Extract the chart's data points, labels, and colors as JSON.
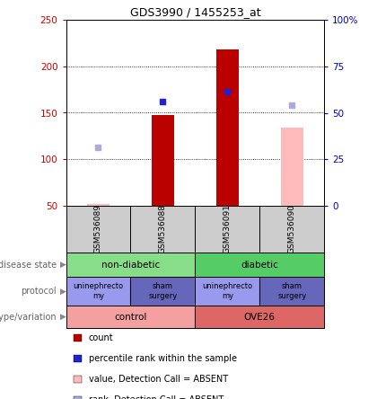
{
  "title": "GDS3990 / 1455253_at",
  "samples": [
    "GSM536089",
    "GSM536088",
    "GSM536091",
    "GSM536090"
  ],
  "bar_positions": [
    0,
    1,
    2,
    3
  ],
  "count_values": [
    null,
    148,
    218,
    null
  ],
  "count_color": "#bb0000",
  "percentile_values": [
    null,
    162,
    173,
    null
  ],
  "percentile_color": "#2222cc",
  "absent_value_values": [
    52,
    null,
    null,
    134
  ],
  "absent_value_color": "#ffbbbb",
  "absent_rank_values": [
    113,
    null,
    null,
    158
  ],
  "absent_rank_color": "#aaaadd",
  "ylim_left": [
    50,
    250
  ],
  "ylim_right": [
    0,
    100
  ],
  "y_ticks_left": [
    50,
    100,
    150,
    200,
    250
  ],
  "y_ticks_right": [
    0,
    25,
    50,
    75,
    100
  ],
  "left_tick_color": "#cc0000",
  "right_tick_color": "#0000cc",
  "disease_state_groups": [
    {
      "label": "non-diabetic",
      "cols": [
        0,
        1
      ],
      "color": "#88dd88"
    },
    {
      "label": "diabetic",
      "cols": [
        2,
        3
      ],
      "color": "#55cc66"
    }
  ],
  "protocol_groups": [
    {
      "label": "uninephrecto\nmy",
      "cols": [
        0
      ],
      "color": "#9999ee"
    },
    {
      "label": "sham\nsurgery",
      "cols": [
        1
      ],
      "color": "#6666bb"
    },
    {
      "label": "uninephrecto\nmy",
      "cols": [
        2
      ],
      "color": "#9999ee"
    },
    {
      "label": "sham\nsurgery",
      "cols": [
        3
      ],
      "color": "#6666bb"
    }
  ],
  "genotype_groups": [
    {
      "label": "control",
      "cols": [
        0,
        1
      ],
      "color": "#f4a0a0"
    },
    {
      "label": "OVE26",
      "cols": [
        2,
        3
      ],
      "color": "#dd6666"
    }
  ],
  "legend_items": [
    {
      "label": "count",
      "color": "#bb0000"
    },
    {
      "label": "percentile rank within the sample",
      "color": "#2222cc"
    },
    {
      "label": "value, Detection Call = ABSENT",
      "color": "#ffbbbb"
    },
    {
      "label": "rank, Detection Call = ABSENT",
      "color": "#aaaadd"
    }
  ]
}
